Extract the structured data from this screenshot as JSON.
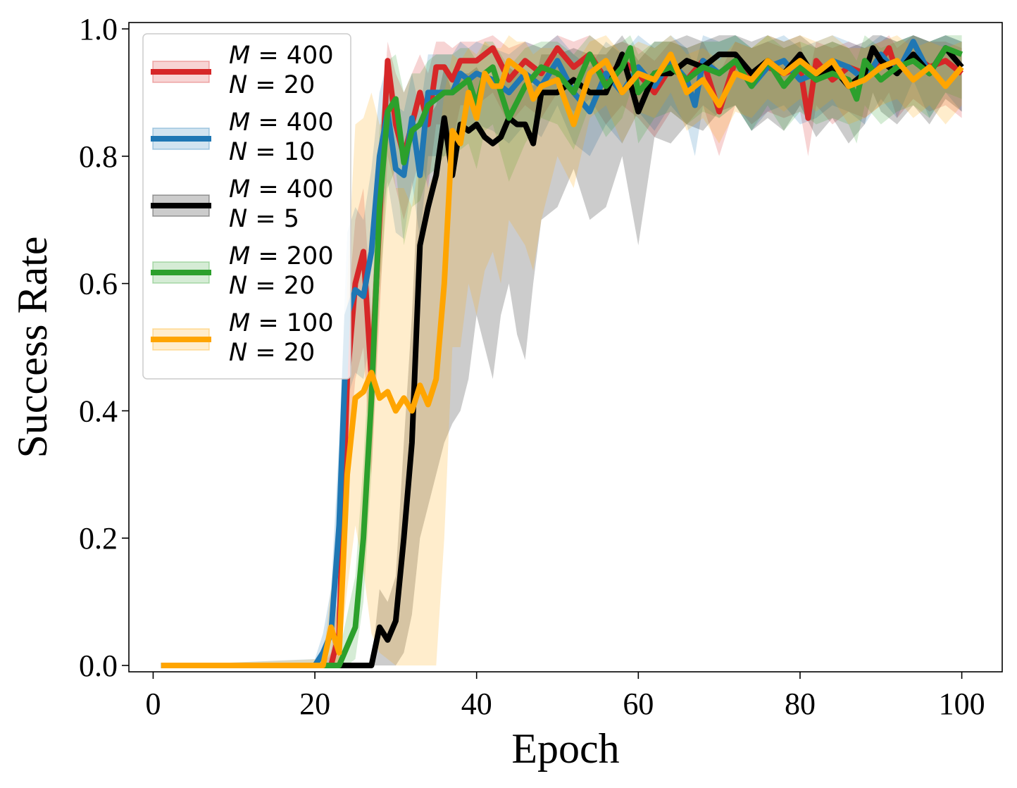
{
  "chart_data": {
    "type": "line",
    "xlabel": "Epoch",
    "ylabel": "Success Rate",
    "xlim": [
      -3,
      105
    ],
    "ylim": [
      -0.01,
      1.01
    ],
    "xticks": [
      "0",
      "20",
      "40",
      "60",
      "80",
      "100"
    ],
    "yticks": [
      "0.0",
      "0.2",
      "0.4",
      "0.6",
      "0.8",
      "1.0"
    ],
    "grid": false,
    "legend": "top-left",
    "series": [
      {
        "name": "M = 400, N = 20",
        "legend_line1": "M = 400",
        "legend_line2": "N = 20",
        "color": "#d62728",
        "x": [
          1,
          20,
          21,
          22,
          23,
          24,
          25,
          26,
          27,
          28,
          29,
          30,
          31,
          32,
          33,
          34,
          35,
          36,
          37,
          38,
          39,
          40,
          42,
          44,
          46,
          48,
          50,
          52,
          54,
          56,
          58,
          60,
          62,
          64,
          66,
          68,
          70,
          72,
          74,
          76,
          78,
          80,
          81,
          82,
          84,
          86,
          88,
          90,
          91,
          92,
          94,
          96,
          98,
          100
        ],
        "y": [
          0,
          0,
          0,
          0,
          0.05,
          0.45,
          0.6,
          0.65,
          0.45,
          0.7,
          0.95,
          0.85,
          0.8,
          0.85,
          0.9,
          0.85,
          0.94,
          0.94,
          0.92,
          0.95,
          0.95,
          0.95,
          0.97,
          0.92,
          0.95,
          0.93,
          0.97,
          0.94,
          0.96,
          0.92,
          0.95,
          0.93,
          0.9,
          0.94,
          0.92,
          0.95,
          0.87,
          0.95,
          0.92,
          0.94,
          0.93,
          0.94,
          0.86,
          0.95,
          0.92,
          0.94,
          0.93,
          0.95,
          0.97,
          0.93,
          0.96,
          0.94,
          0.95,
          0.93
        ],
        "lower": [
          0,
          0,
          0,
          0,
          0,
          0.3,
          0.45,
          0.5,
          0.3,
          0.55,
          0.8,
          0.75,
          0.7,
          0.75,
          0.8,
          0.75,
          0.85,
          0.85,
          0.82,
          0.88,
          0.88,
          0.88,
          0.9,
          0.85,
          0.88,
          0.86,
          0.9,
          0.87,
          0.89,
          0.85,
          0.88,
          0.86,
          0.83,
          0.87,
          0.85,
          0.88,
          0.8,
          0.88,
          0.85,
          0.87,
          0.86,
          0.87,
          0.8,
          0.88,
          0.85,
          0.87,
          0.86,
          0.88,
          0.9,
          0.86,
          0.89,
          0.87,
          0.88,
          0.86
        ],
        "upper": [
          0,
          0,
          0,
          0.02,
          0.12,
          0.55,
          0.7,
          0.75,
          0.55,
          0.8,
          0.98,
          0.93,
          0.9,
          0.93,
          0.96,
          0.93,
          0.98,
          0.98,
          0.97,
          0.98,
          0.98,
          0.98,
          0.99,
          0.97,
          0.98,
          0.97,
          0.99,
          0.98,
          0.99,
          0.97,
          0.98,
          0.97,
          0.95,
          0.98,
          0.97,
          0.98,
          0.93,
          0.98,
          0.97,
          0.98,
          0.97,
          0.98,
          0.92,
          0.98,
          0.97,
          0.98,
          0.97,
          0.98,
          0.99,
          0.97,
          0.99,
          0.98,
          0.98,
          0.97
        ]
      },
      {
        "name": "M = 400, N = 10",
        "legend_line1": "M = 400",
        "legend_line2": "N = 10",
        "color": "#1f77b4",
        "x": [
          1,
          20,
          21,
          22,
          23,
          24,
          25,
          26,
          27,
          28,
          29,
          30,
          31,
          32,
          33,
          34,
          35,
          36,
          37,
          38,
          39,
          40,
          42,
          44,
          46,
          48,
          50,
          52,
          54,
          56,
          58,
          60,
          62,
          64,
          66,
          67,
          68,
          70,
          72,
          74,
          76,
          78,
          80,
          82,
          84,
          86,
          88,
          90,
          92,
          94,
          96,
          98,
          100
        ],
        "y": [
          0,
          0,
          0.02,
          0.05,
          0.22,
          0.55,
          0.59,
          0.58,
          0.65,
          0.8,
          0.87,
          0.78,
          0.77,
          0.86,
          0.77,
          0.9,
          0.9,
          0.9,
          0.9,
          0.93,
          0.92,
          0.93,
          0.92,
          0.9,
          0.93,
          0.91,
          0.95,
          0.9,
          0.87,
          0.93,
          0.9,
          0.94,
          0.91,
          0.95,
          0.92,
          0.88,
          0.95,
          0.93,
          0.95,
          0.91,
          0.94,
          0.95,
          0.92,
          0.93,
          0.95,
          0.94,
          0.92,
          0.96,
          0.93,
          0.98,
          0.93,
          0.97,
          0.94
        ],
        "lower": [
          0,
          0,
          0,
          0,
          0.1,
          0.42,
          0.46,
          0.45,
          0.52,
          0.68,
          0.76,
          0.68,
          0.67,
          0.76,
          0.67,
          0.8,
          0.8,
          0.8,
          0.82,
          0.85,
          0.84,
          0.85,
          0.84,
          0.82,
          0.85,
          0.83,
          0.88,
          0.82,
          0.8,
          0.85,
          0.82,
          0.87,
          0.84,
          0.88,
          0.85,
          0.8,
          0.88,
          0.86,
          0.88,
          0.84,
          0.87,
          0.88,
          0.85,
          0.86,
          0.88,
          0.87,
          0.85,
          0.89,
          0.86,
          0.92,
          0.86,
          0.9,
          0.87
        ],
        "upper": [
          0,
          0.01,
          0.05,
          0.12,
          0.35,
          0.68,
          0.72,
          0.7,
          0.78,
          0.9,
          0.95,
          0.88,
          0.87,
          0.93,
          0.87,
          0.96,
          0.96,
          0.96,
          0.96,
          0.98,
          0.97,
          0.98,
          0.97,
          0.96,
          0.98,
          0.97,
          0.99,
          0.96,
          0.94,
          0.98,
          0.96,
          0.99,
          0.97,
          0.99,
          0.97,
          0.94,
          0.99,
          0.98,
          0.99,
          0.97,
          0.98,
          0.99,
          0.97,
          0.98,
          0.99,
          0.98,
          0.97,
          0.99,
          0.98,
          0.99,
          0.98,
          0.99,
          0.98
        ]
      },
      {
        "name": "M = 400, N = 5",
        "legend_line1": "M = 400",
        "legend_line2": "N = 5",
        "color": "#000000",
        "x": [
          1,
          23,
          24,
          25,
          26,
          27,
          28,
          29,
          30,
          31,
          32,
          33,
          34,
          35,
          36,
          37,
          38,
          39,
          40,
          41,
          42,
          43,
          44,
          45,
          46,
          47,
          48,
          50,
          52,
          54,
          56,
          58,
          60,
          62,
          64,
          66,
          68,
          70,
          72,
          74,
          76,
          78,
          80,
          82,
          84,
          86,
          88,
          89,
          90,
          92,
          94,
          96,
          98,
          100
        ],
        "y": [
          0,
          0,
          0,
          0,
          0,
          0,
          0.06,
          0.04,
          0.07,
          0.2,
          0.35,
          0.66,
          0.72,
          0.77,
          0.86,
          0.77,
          0.85,
          0.84,
          0.85,
          0.83,
          0.82,
          0.83,
          0.86,
          0.85,
          0.85,
          0.82,
          0.9,
          0.9,
          0.92,
          0.9,
          0.9,
          0.96,
          0.87,
          0.93,
          0.93,
          0.95,
          0.94,
          0.96,
          0.96,
          0.93,
          0.95,
          0.93,
          0.96,
          0.92,
          0.94,
          0.91,
          0.93,
          0.97,
          0.95,
          0.93,
          0.96,
          0.93,
          0.97,
          0.94
        ],
        "lower": [
          0,
          0,
          0,
          0,
          0,
          0,
          0,
          0,
          0,
          0.02,
          0.08,
          0.2,
          0.25,
          0.3,
          0.35,
          0.38,
          0.4,
          0.45,
          0.55,
          0.5,
          0.45,
          0.55,
          0.6,
          0.52,
          0.48,
          0.6,
          0.7,
          0.72,
          0.78,
          0.7,
          0.72,
          0.8,
          0.66,
          0.83,
          0.82,
          0.85,
          0.84,
          0.87,
          0.88,
          0.84,
          0.86,
          0.84,
          0.88,
          0.83,
          0.86,
          0.82,
          0.85,
          0.9,
          0.87,
          0.85,
          0.88,
          0.85,
          0.89,
          0.87
        ],
        "upper": [
          0,
          0,
          0,
          0,
          0,
          0,
          0.12,
          0.1,
          0.14,
          0.35,
          0.55,
          0.82,
          0.86,
          0.88,
          0.94,
          0.9,
          0.93,
          0.93,
          0.94,
          0.92,
          0.91,
          0.92,
          0.94,
          0.93,
          0.93,
          0.91,
          0.96,
          0.96,
          0.97,
          0.96,
          0.96,
          0.99,
          0.95,
          0.98,
          0.98,
          0.99,
          0.98,
          0.99,
          0.99,
          0.98,
          0.99,
          0.98,
          0.99,
          0.97,
          0.98,
          0.97,
          0.98,
          0.99,
          0.99,
          0.98,
          0.99,
          0.98,
          0.99,
          0.98
        ]
      },
      {
        "name": "M = 200, N = 20",
        "legend_line1": "M = 200",
        "legend_line2": "N = 20",
        "color": "#2ca02c",
        "x": [
          1,
          22,
          23,
          24,
          25,
          26,
          27,
          28,
          29,
          30,
          31,
          32,
          33,
          34,
          35,
          36,
          37,
          38,
          39,
          40,
          41,
          42,
          44,
          46,
          48,
          50,
          52,
          54,
          56,
          58,
          59,
          60,
          62,
          64,
          66,
          68,
          70,
          72,
          74,
          76,
          78,
          80,
          82,
          84,
          86,
          87,
          88,
          90,
          92,
          94,
          96,
          98,
          100
        ],
        "y": [
          0,
          0,
          0,
          0.03,
          0.06,
          0.2,
          0.42,
          0.72,
          0.87,
          0.89,
          0.79,
          0.84,
          0.85,
          0.88,
          0.89,
          0.9,
          0.9,
          0.91,
          0.92,
          0.88,
          0.93,
          0.94,
          0.86,
          0.91,
          0.94,
          0.93,
          0.9,
          0.96,
          0.91,
          0.94,
          0.97,
          0.9,
          0.93,
          0.94,
          0.92,
          0.94,
          0.93,
          0.95,
          0.91,
          0.95,
          0.91,
          0.94,
          0.92,
          0.93,
          0.92,
          0.89,
          0.95,
          0.92,
          0.94,
          0.95,
          0.93,
          0.97,
          0.96
        ],
        "lower": [
          0,
          0,
          0,
          0,
          0.01,
          0.1,
          0.3,
          0.58,
          0.75,
          0.78,
          0.66,
          0.72,
          0.73,
          0.77,
          0.78,
          0.8,
          0.8,
          0.81,
          0.82,
          0.78,
          0.84,
          0.85,
          0.76,
          0.82,
          0.86,
          0.85,
          0.81,
          0.88,
          0.83,
          0.86,
          0.9,
          0.82,
          0.86,
          0.87,
          0.85,
          0.87,
          0.86,
          0.88,
          0.84,
          0.88,
          0.84,
          0.87,
          0.85,
          0.86,
          0.85,
          0.82,
          0.88,
          0.85,
          0.87,
          0.88,
          0.86,
          0.9,
          0.89
        ],
        "upper": [
          0,
          0,
          0.02,
          0.08,
          0.14,
          0.32,
          0.55,
          0.84,
          0.95,
          0.96,
          0.9,
          0.93,
          0.93,
          0.95,
          0.96,
          0.96,
          0.96,
          0.97,
          0.97,
          0.95,
          0.98,
          0.98,
          0.94,
          0.97,
          0.98,
          0.98,
          0.96,
          0.99,
          0.97,
          0.98,
          0.99,
          0.96,
          0.98,
          0.98,
          0.97,
          0.98,
          0.98,
          0.99,
          0.97,
          0.99,
          0.97,
          0.98,
          0.97,
          0.98,
          0.97,
          0.95,
          0.99,
          0.97,
          0.98,
          0.99,
          0.98,
          0.99,
          0.99
        ]
      },
      {
        "name": "M = 100, N = 20",
        "legend_line1": "M = 100",
        "legend_line2": "N = 20",
        "color": "#ffa500",
        "x": [
          1,
          21,
          22,
          23,
          24,
          25,
          26,
          27,
          28,
          29,
          30,
          31,
          32,
          33,
          34,
          35,
          36,
          37,
          38,
          39,
          40,
          41,
          42,
          43,
          44,
          45,
          46,
          47,
          48,
          50,
          52,
          54,
          56,
          58,
          60,
          62,
          64,
          66,
          68,
          70,
          72,
          74,
          76,
          78,
          80,
          82,
          84,
          86,
          88,
          90,
          92,
          94,
          96,
          98,
          100
        ],
        "y": [
          0,
          0,
          0.06,
          0.02,
          0.3,
          0.42,
          0.43,
          0.46,
          0.42,
          0.43,
          0.4,
          0.42,
          0.4,
          0.44,
          0.41,
          0.45,
          0.6,
          0.84,
          0.82,
          0.9,
          0.86,
          0.93,
          0.91,
          0.91,
          0.95,
          0.94,
          0.93,
          0.89,
          0.91,
          0.92,
          0.85,
          0.93,
          0.95,
          0.9,
          0.93,
          0.92,
          0.96,
          0.9,
          0.92,
          0.88,
          0.93,
          0.92,
          0.95,
          0.93,
          0.95,
          0.93,
          0.95,
          0.91,
          0.92,
          0.94,
          0.95,
          0.92,
          0.94,
          0.91,
          0.94
        ],
        "lower": [
          0,
          0,
          0,
          0,
          0.12,
          0.22,
          0.15,
          0.05,
          0.02,
          0.01,
          0.0,
          0.0,
          0.0,
          0.0,
          0.0,
          0.0,
          0.2,
          0.5,
          0.5,
          0.6,
          0.55,
          0.62,
          0.65,
          0.6,
          0.7,
          0.68,
          0.66,
          0.62,
          0.7,
          0.8,
          0.75,
          0.86,
          0.88,
          0.82,
          0.87,
          0.86,
          0.9,
          0.84,
          0.86,
          0.82,
          0.87,
          0.86,
          0.89,
          0.87,
          0.89,
          0.87,
          0.89,
          0.85,
          0.86,
          0.88,
          0.89,
          0.86,
          0.88,
          0.85,
          0.88
        ],
        "upper": [
          0,
          0.01,
          0.12,
          0.08,
          0.6,
          0.85,
          0.86,
          0.9,
          0.85,
          0.85,
          0.75,
          0.75,
          0.72,
          0.8,
          0.75,
          0.78,
          0.9,
          0.96,
          0.95,
          0.97,
          0.96,
          0.98,
          0.97,
          0.97,
          0.99,
          0.98,
          0.98,
          0.96,
          0.97,
          0.97,
          0.94,
          0.98,
          0.99,
          0.96,
          0.98,
          0.97,
          0.99,
          0.96,
          0.97,
          0.95,
          0.98,
          0.97,
          0.99,
          0.98,
          0.99,
          0.98,
          0.99,
          0.97,
          0.97,
          0.98,
          0.99,
          0.97,
          0.98,
          0.97,
          0.98
        ]
      }
    ]
  }
}
